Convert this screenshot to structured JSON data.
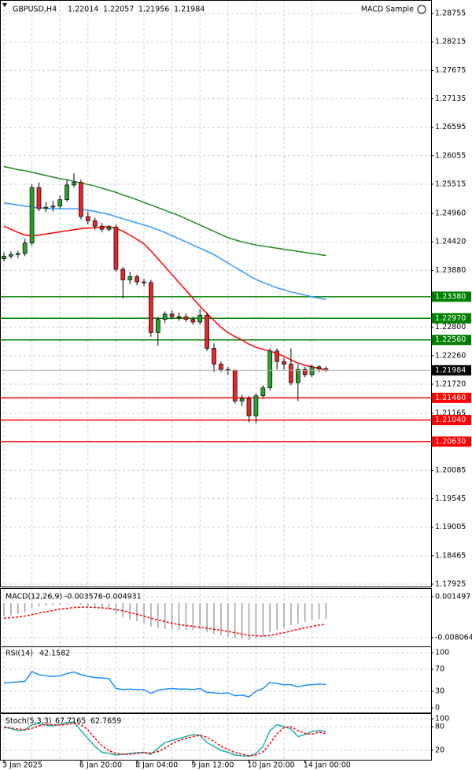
{
  "chart_data": [
    {
      "type": "candlestick",
      "title": "GBPUSD,H4",
      "expert": "MACD Sample",
      "categories": [
        "3 Jan 2025",
        null,
        null,
        null,
        null,
        null,
        null,
        null,
        null,
        null,
        null,
        "6 Jan 20:00",
        null,
        null,
        null,
        null,
        null,
        null,
        null,
        "8 Jan 04:00",
        null,
        null,
        null,
        null,
        null,
        null,
        null,
        "9 Jan 12:00",
        null,
        null,
        null,
        null,
        null,
        null,
        null,
        "10 Jan 20:00",
        null,
        null,
        null,
        null,
        null,
        null,
        null,
        "14 Jan 00:00",
        null,
        null,
        null
      ],
      "open": [
        1.241,
        1.2415,
        1.2418,
        1.242,
        1.244,
        1.2545,
        1.2505,
        1.2508,
        1.251,
        1.2522,
        1.255,
        1.2555,
        1.249,
        1.2482,
        1.2472,
        1.2466,
        1.247,
        1.239,
        1.237,
        1.2376,
        1.2366,
        1.2365,
        1.227,
        1.2295,
        1.2305,
        1.23,
        1.23,
        1.2295,
        1.229,
        1.2303,
        1.224,
        1.221,
        1.22,
        1.2198,
        1.214,
        1.2145,
        1.2112,
        1.215,
        1.2165,
        1.2235,
        1.2215,
        1.221,
        1.2175,
        1.22,
        1.219,
        1.2205,
        1.22014
      ],
      "high": [
        1.2422,
        1.2424,
        1.2425,
        1.2448,
        1.2552,
        1.2555,
        1.2518,
        1.252,
        1.253,
        1.256,
        1.2572,
        1.256,
        1.25,
        1.2488,
        1.2478,
        1.2474,
        1.2475,
        1.2395,
        1.2385,
        1.238,
        1.2372,
        1.237,
        1.23,
        1.231,
        1.2312,
        1.2308,
        1.2306,
        1.23,
        1.2315,
        1.2308,
        1.225,
        1.2215,
        1.2205,
        1.22,
        1.2152,
        1.215,
        1.2155,
        1.217,
        1.224,
        1.224,
        1.2222,
        1.224,
        1.221,
        1.2205,
        1.221,
        1.2208,
        1.22057
      ],
      "low": [
        1.2405,
        1.241,
        1.2412,
        1.2415,
        1.2435,
        1.25,
        1.2498,
        1.25,
        1.2505,
        1.2518,
        1.2545,
        1.2485,
        1.2475,
        1.2465,
        1.246,
        1.2462,
        1.2385,
        1.2335,
        1.2362,
        1.236,
        1.2358,
        1.2262,
        1.2245,
        1.2288,
        1.2295,
        1.2292,
        1.229,
        1.2285,
        1.2285,
        1.2235,
        1.2195,
        1.2195,
        1.219,
        1.2135,
        1.213,
        1.21,
        1.2098,
        1.2145,
        1.216,
        1.22,
        1.22,
        1.217,
        1.214,
        1.2185,
        1.2185,
        1.2195,
        1.21956
      ],
      "close": [
        1.2415,
        1.2418,
        1.242,
        1.244,
        1.2545,
        1.2505,
        1.2508,
        1.251,
        1.2522,
        1.255,
        1.2555,
        1.249,
        1.2482,
        1.2472,
        1.2466,
        1.247,
        1.239,
        1.237,
        1.2376,
        1.2366,
        1.2365,
        1.227,
        1.2295,
        1.2305,
        1.23,
        1.23,
        1.2295,
        1.229,
        1.2303,
        1.224,
        1.221,
        1.22,
        1.2198,
        1.214,
        1.2145,
        1.2112,
        1.215,
        1.2165,
        1.2235,
        1.2215,
        1.221,
        1.2175,
        1.22,
        1.219,
        1.2205,
        1.2201,
        1.21984
      ],
      "bull_color": "#2ca02c",
      "bear_color": "#e8262a",
      "series": [
        {
          "color": "#1e8c1e",
          "values": [
            1.2585,
            1.2582,
            1.2579,
            1.2577,
            1.2574,
            1.2571,
            1.2568,
            1.2565,
            1.2562,
            1.256,
            1.2557,
            1.2554,
            1.2551,
            1.2548,
            1.2544,
            1.254,
            1.2536,
            1.2531,
            1.2527,
            1.2522,
            1.2517,
            1.2512,
            1.2507,
            1.2502,
            1.2497,
            1.2492,
            1.2486,
            1.248,
            1.2474,
            1.2468,
            1.2462,
            1.2456,
            1.245,
            1.2446,
            1.2442,
            1.2439,
            1.2436,
            1.2434,
            1.2432,
            1.243,
            1.2428,
            1.2426,
            1.2424,
            1.2422,
            1.242,
            1.2418,
            1.2416
          ]
        },
        {
          "color": "#3399ff",
          "values": [
            1.2516,
            1.2514,
            1.2512,
            1.251,
            1.2508,
            1.2507,
            1.2506,
            1.2505,
            1.2505,
            1.2505,
            1.2505,
            1.2504,
            1.2502,
            1.25,
            1.2497,
            1.2494,
            1.249,
            1.2486,
            1.2482,
            1.2478,
            1.2474,
            1.247,
            1.2465,
            1.246,
            1.2454,
            1.2448,
            1.2442,
            1.2436,
            1.243,
            1.2424,
            1.2418,
            1.241,
            1.2402,
            1.2394,
            1.2386,
            1.2378,
            1.2371,
            1.2365,
            1.236,
            1.2355,
            1.2351,
            1.2347,
            1.2344,
            1.2341,
            1.2338,
            1.2335,
            1.2333
          ]
        },
        {
          "color": "#ff0000",
          "values": [
            1.2472,
            1.2466,
            1.246,
            1.2455,
            1.2453,
            1.2455,
            1.2457,
            1.2459,
            1.2461,
            1.2463,
            1.2465,
            1.2467,
            1.2468,
            1.2469,
            1.247,
            1.2471,
            1.2468,
            1.2462,
            1.2455,
            1.2447,
            1.2438,
            1.2425,
            1.241,
            1.2395,
            1.238,
            1.2365,
            1.235,
            1.2335,
            1.232,
            1.2306,
            1.2293,
            1.228,
            1.227,
            1.2262,
            1.2256,
            1.2248,
            1.2242,
            1.2238,
            1.2235,
            1.223,
            1.2225,
            1.2218,
            1.2212,
            1.2208,
            1.2205,
            1.2202,
            1.2199
          ]
        }
      ],
      "levels": [
        {
          "value": 1.2338,
          "label": "1.23380",
          "color": "#008000"
        },
        {
          "value": 1.2297,
          "label": "1.22970",
          "color": "#008000"
        },
        {
          "value": 1.2256,
          "label": "1.22560",
          "color": "#008000"
        },
        {
          "value": 1.2146,
          "label": "1.21460",
          "color": "#ff0000"
        },
        {
          "value": 1.2104,
          "label": "1.21040",
          "color": "#ff0000"
        },
        {
          "value": 1.2063,
          "label": "1.20630",
          "color": "#ff0000"
        }
      ],
      "ylim": [
        1.1788,
        1.2901
      ],
      "yticks": [
        1.28755,
        1.28215,
        1.27675,
        1.27135,
        1.26595,
        1.26055,
        1.25515,
        {
          "value": 1.2496,
          "label": "1.24960"
        },
        {
          "value": 1.2442,
          "label": "1.24420"
        },
        {
          "value": 1.2388,
          "label": "1.23880"
        },
        {
          "value": 1.228,
          "label": "1.22800"
        },
        {
          "value": 1.2226,
          "label": "1.22260"
        },
        {
          "value": 1.2172,
          "label": "1.21720"
        },
        1.21165,
        1.20085,
        1.19545,
        1.19005,
        1.18465,
        1.17925
      ],
      "grid": true
    },
    {
      "type": "macd",
      "title": "MACD(12,26,9)",
      "histogram_color": "#a0a0a0",
      "signal_color": "#ff0000",
      "histogram": [
        -0.003,
        -0.0028,
        -0.0025,
        -0.0022,
        -0.0012,
        -0.0008,
        -0.0006,
        -0.0005,
        -0.0004,
        -0.0002,
        -0.0001,
        -0.0004,
        -0.0007,
        -0.001,
        -0.0013,
        -0.0015,
        -0.0025,
        -0.0033,
        -0.0038,
        -0.0042,
        -0.0045,
        -0.0055,
        -0.0058,
        -0.006,
        -0.0061,
        -0.0062,
        -0.0062,
        -0.0063,
        -0.0062,
        -0.0068,
        -0.0072,
        -0.0075,
        -0.0077,
        -0.0082,
        -0.0083,
        -0.0086,
        -0.0083,
        -0.0078,
        -0.0068,
        -0.0062,
        -0.0057,
        -0.0051,
        -0.0048,
        -0.0043,
        -0.004,
        -0.0037,
        -0.003576
      ],
      "signal": [
        -0.0035,
        -0.0034,
        -0.0032,
        -0.003,
        -0.0027,
        -0.0023,
        -0.002,
        -0.0017,
        -0.0014,
        -0.0012,
        -0.001,
        -0.0009,
        -0.0009,
        -0.001,
        -0.0011,
        -0.0012,
        -0.0015,
        -0.0018,
        -0.0022,
        -0.0026,
        -0.003,
        -0.0035,
        -0.0039,
        -0.0043,
        -0.0047,
        -0.005,
        -0.0052,
        -0.0054,
        -0.0056,
        -0.0058,
        -0.0061,
        -0.0063,
        -0.0066,
        -0.0069,
        -0.0072,
        -0.0075,
        -0.0076,
        -0.0077,
        -0.0075,
        -0.0072,
        -0.0069,
        -0.0065,
        -0.0061,
        -0.0057,
        -0.0054,
        -0.0051,
        -0.004931
      ],
      "ylim": [
        -0.01027,
        0.00334
      ],
      "yticks": [
        0.001497,
        -0.008064
      ]
    },
    {
      "type": "line",
      "title": "RSI(14)",
      "series": [
        {
          "color": "#1e90ff",
          "values": [
            45,
            46,
            47,
            48,
            66,
            60,
            58,
            57,
            58,
            62,
            65,
            60,
            57,
            55,
            54,
            53,
            35,
            33,
            34,
            33,
            33,
            26,
            32,
            34,
            35,
            34,
            34,
            33,
            35,
            28,
            27,
            26,
            27,
            22,
            23,
            20,
            30,
            35,
            46,
            44,
            42,
            42,
            38,
            41,
            42,
            43,
            42.1582
          ]
        }
      ],
      "ylim": [
        -10,
        110
      ],
      "yticks": [
        100,
        70,
        30,
        0
      ]
    },
    {
      "type": "line",
      "title": "Stoch(5,3,3)",
      "series": [
        {
          "color": "#20b2aa",
          "values": [
            80,
            75,
            70,
            72,
            85,
            88,
            84,
            82,
            86,
            90,
            92,
            70,
            50,
            30,
            15,
            12,
            8,
            10,
            12,
            14,
            15,
            10,
            25,
            40,
            45,
            50,
            55,
            60,
            58,
            40,
            30,
            20,
            15,
            8,
            6,
            5,
            12,
            30,
            70,
            85,
            80,
            75,
            55,
            60,
            68,
            70,
            67.7165
          ]
        },
        {
          "color": "#ff0000",
          "dashed": true,
          "values": [
            78,
            77,
            74,
            72,
            76,
            82,
            86,
            85,
            84,
            86,
            89,
            85,
            72,
            50,
            32,
            19,
            12,
            10,
            10,
            12,
            14,
            13,
            17,
            25,
            37,
            45,
            50,
            55,
            58,
            53,
            43,
            30,
            22,
            14,
            10,
            6,
            8,
            16,
            37,
            62,
            78,
            80,
            70,
            63,
            61,
            66,
            62.7659
          ]
        }
      ],
      "ylim": [
        -6,
        112
      ],
      "yticks": [
        100,
        80,
        20
      ]
    }
  ]
}
